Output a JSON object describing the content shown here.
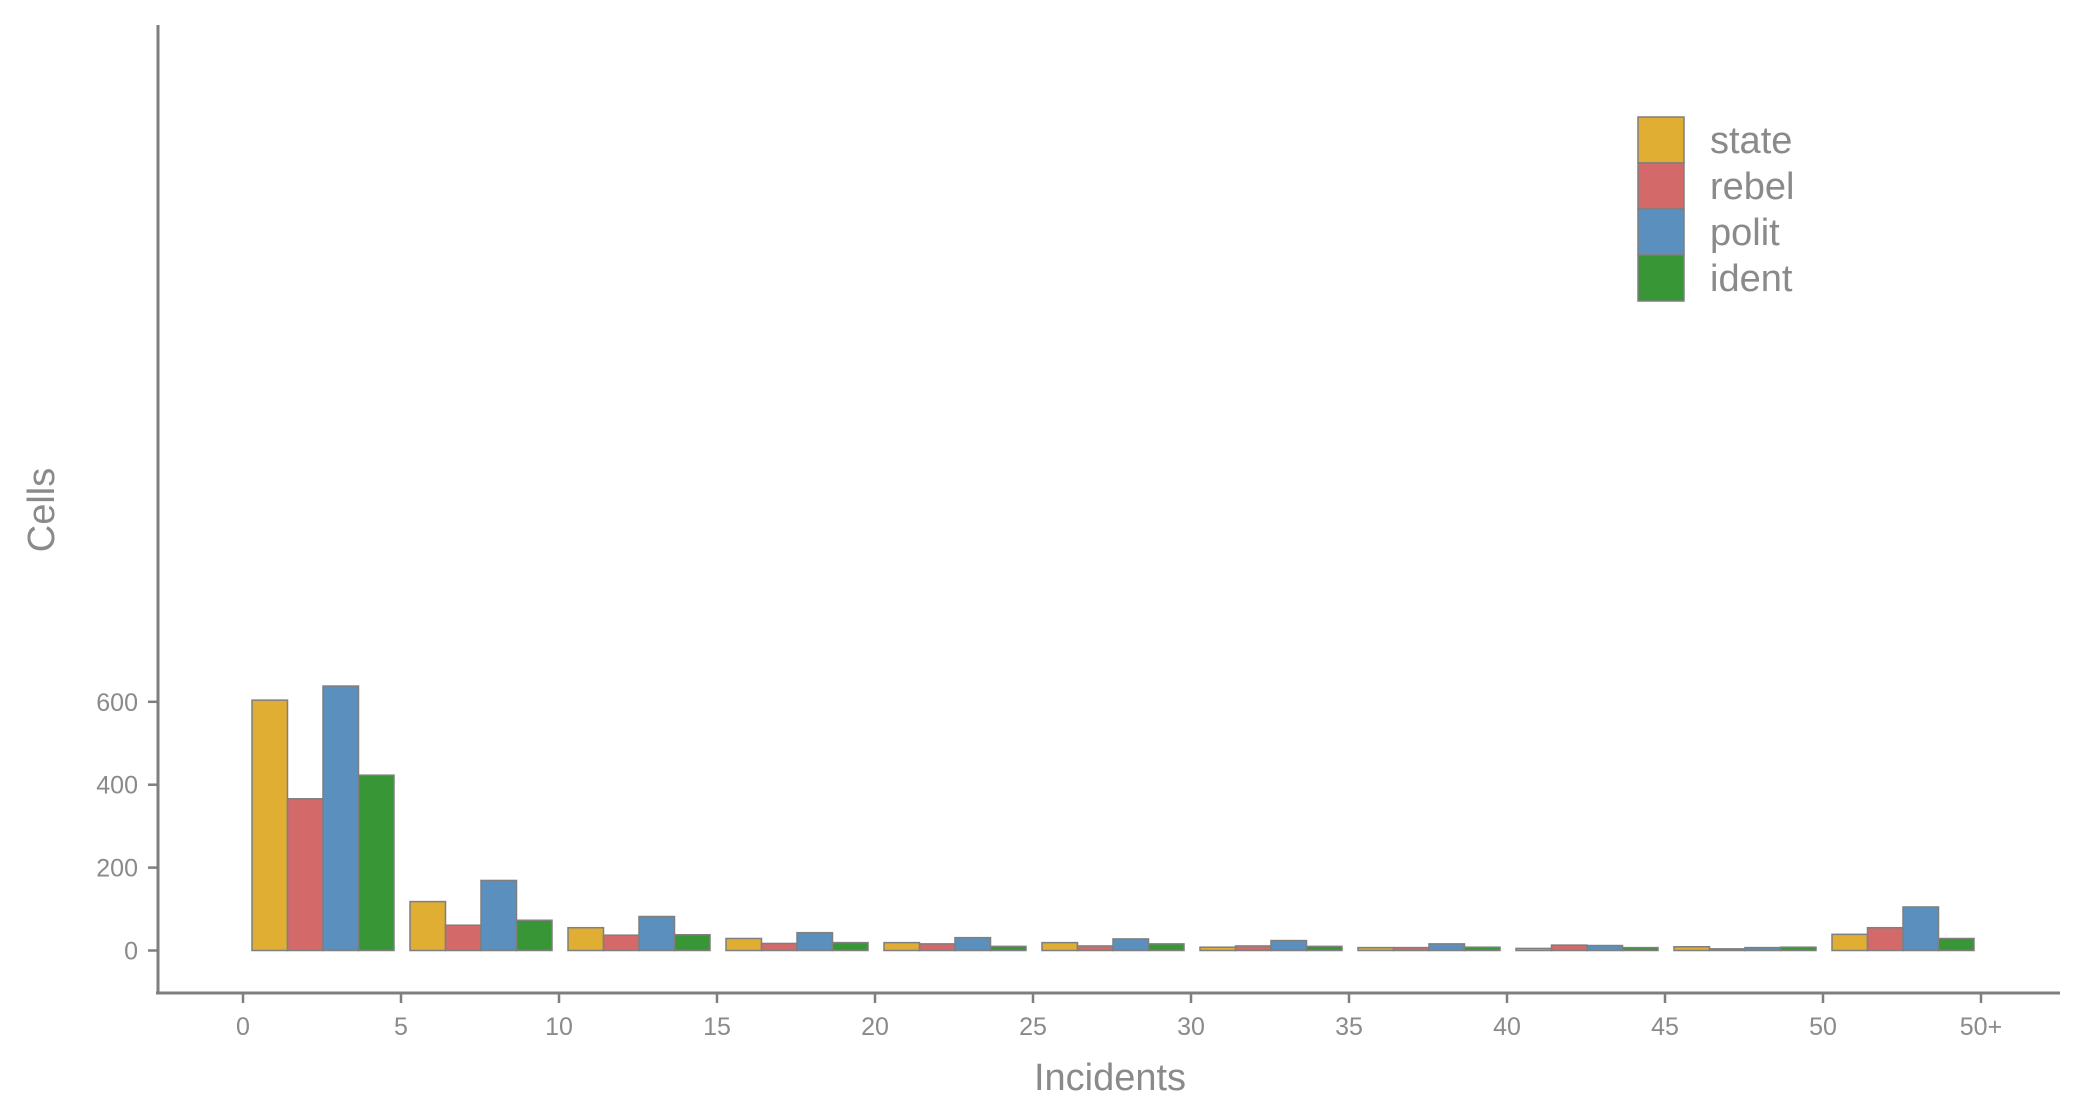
{
  "chart_data": {
    "type": "bar",
    "title": "",
    "xlabel": "Incidents",
    "ylabel": "Cells",
    "x_ticks": [
      "0",
      "5",
      "10",
      "15",
      "20",
      "25",
      "30",
      "35",
      "40",
      "45",
      "50",
      "50+"
    ],
    "y_ticks": [
      "0",
      "200",
      "400",
      "600"
    ],
    "ylim": [
      -30,
      670
    ],
    "bins": [
      "0-5",
      "5-10",
      "10-15",
      "15-20",
      "20-25",
      "25-30",
      "30-35",
      "35-40",
      "40-45",
      "45-50",
      "50+"
    ],
    "series": [
      {
        "name": "state",
        "color": "#DFAE32",
        "values": [
          604,
          118,
          55,
          29,
          19,
          19,
          8,
          7,
          5,
          9,
          39
        ]
      },
      {
        "name": "rebel",
        "color": "#D4696A",
        "values": [
          366,
          61,
          37,
          17,
          16,
          11,
          11,
          7,
          13,
          4,
          55
        ]
      },
      {
        "name": "polit",
        "color": "#5A8FBE",
        "values": [
          638,
          169,
          82,
          43,
          31,
          28,
          24,
          16,
          12,
          7,
          105
        ]
      },
      {
        "name": "ident",
        "color": "#399636",
        "values": [
          423,
          73,
          38,
          19,
          10,
          16,
          10,
          8,
          7,
          8,
          29
        ]
      }
    ],
    "legend_position": "top-right",
    "grid": false
  }
}
